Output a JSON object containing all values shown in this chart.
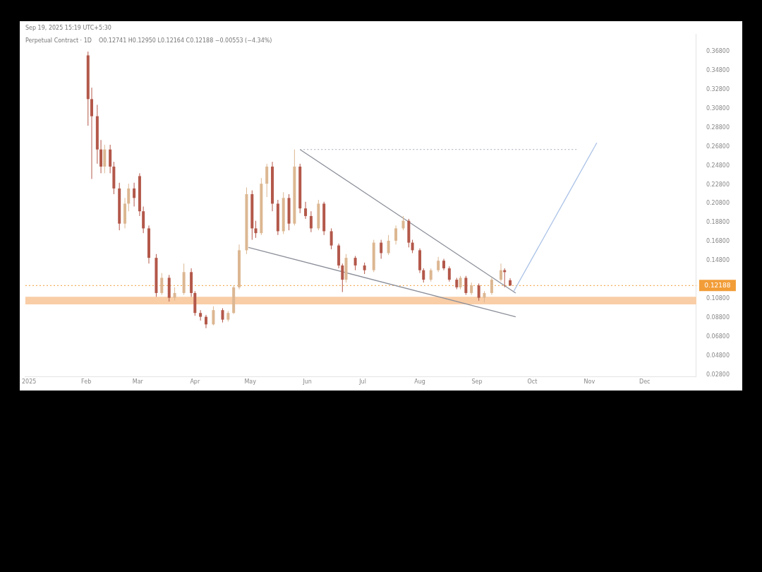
{
  "chart_data": {
    "type": "candlestick",
    "title": "Perpetual Contract · 1D",
    "subtitle": "O0.12741 H0.12950 L0.12164 C0.12188 −0.00553 (−4.34%)",
    "annotations": [
      "Sep 19, 2025 15:19 UTC+5:30"
    ],
    "xlim": [
      "2024-12-30",
      "2025-12-29"
    ],
    "xticks": [
      {
        "value": "2025-01-01",
        "label": "2025"
      },
      {
        "value": "2025-02-01",
        "label": "Feb"
      },
      {
        "value": "2025-03-01",
        "label": "Mar"
      },
      {
        "value": "2025-04-01",
        "label": "Apr"
      },
      {
        "value": "2025-05-01",
        "label": "May"
      },
      {
        "value": "2025-06-01",
        "label": "Jun"
      },
      {
        "value": "2025-07-01",
        "label": "Jul"
      },
      {
        "value": "2025-08-01",
        "label": "Aug"
      },
      {
        "value": "2025-09-01",
        "label": "Sep"
      },
      {
        "value": "2025-10-01",
        "label": "Oct"
      },
      {
        "value": "2025-11-01",
        "label": "Nov"
      },
      {
        "value": "2025-12-01",
        "label": "Dec"
      }
    ],
    "ylim": [
      0.026,
      0.386
    ],
    "yticks": [
      {
        "value": 0.028,
        "label": "0.02800"
      },
      {
        "value": 0.048,
        "label": "0.04800"
      },
      {
        "value": 0.068,
        "label": "0.06800"
      },
      {
        "value": 0.088,
        "label": "0.08800"
      },
      {
        "value": 0.108,
        "label": "0.10800"
      },
      {
        "value": 0.148,
        "label": "0.14800"
      },
      {
        "value": 0.168,
        "label": "0.16800"
      },
      {
        "value": 0.188,
        "label": "0.18800"
      },
      {
        "value": 0.208,
        "label": "0.20800"
      },
      {
        "value": 0.228,
        "label": "0.22800"
      },
      {
        "value": 0.248,
        "label": "0.24800"
      },
      {
        "value": 0.268,
        "label": "0.26800"
      },
      {
        "value": 0.288,
        "label": "0.28800"
      },
      {
        "value": 0.308,
        "label": "0.30800"
      },
      {
        "value": 0.328,
        "label": "0.32800"
      },
      {
        "value": 0.348,
        "label": "0.34800"
      },
      {
        "value": 0.368,
        "label": "0.36800"
      }
    ],
    "grid": false,
    "legend": false,
    "ref_lines": [
      {
        "axis": "y",
        "value": 0.12188,
        "label": "0.12188",
        "color": "#f29d38",
        "line_style": "dotted"
      }
    ],
    "bands": [
      {
        "axis": "y",
        "from": 0.102,
        "to": 0.11,
        "color": "#f9cda6"
      }
    ],
    "series": [
      {
        "x": [
          "2025-02-02",
          "2025-02-04",
          "2025-02-07",
          "2025-02-09",
          "2025-02-11",
          "2025-02-14",
          "2025-02-16",
          "2025-02-19",
          "2025-02-22",
          "2025-02-24",
          "2025-02-27",
          "2025-03-02",
          "2025-03-04",
          "2025-03-07",
          "2025-03-11",
          "2025-03-14",
          "2025-03-18",
          "2025-03-21",
          "2025-03-26",
          "2025-03-30",
          "2025-04-01",
          "2025-04-04",
          "2025-04-07",
          "2025-04-11",
          "2025-04-16",
          "2025-04-19",
          "2025-04-22",
          "2025-04-25",
          "2025-04-29",
          "2025-05-02",
          "2025-05-04",
          "2025-05-07",
          "2025-05-10",
          "2025-05-13",
          "2025-05-16",
          "2025-05-19",
          "2025-05-22",
          "2025-05-25",
          "2025-05-28",
          "2025-05-31",
          "2025-06-03",
          "2025-06-07",
          "2025-06-10",
          "2025-06-14",
          "2025-06-18",
          "2025-06-20",
          "2025-06-22",
          "2025-06-27",
          "2025-07-02",
          "2025-07-07",
          "2025-07-11",
          "2025-07-15",
          "2025-07-19",
          "2025-07-23",
          "2025-07-26",
          "2025-07-28",
          "2025-08-01",
          "2025-08-03",
          "2025-08-07",
          "2025-08-11",
          "2025-08-14",
          "2025-08-17",
          "2025-08-21",
          "2025-08-23",
          "2025-08-26",
          "2025-08-29",
          "2025-09-02",
          "2025-09-05",
          "2025-09-09",
          "2025-09-14",
          "2025-09-16",
          "2025-09-19"
        ],
        "ohlc": [
          [
            0.364,
            0.368,
            0.29,
            0.318
          ],
          [
            0.318,
            0.33,
            0.234,
            0.3
          ],
          [
            0.3,
            0.312,
            0.25,
            0.265
          ],
          [
            0.265,
            0.275,
            0.24,
            0.247
          ],
          [
            0.247,
            0.27,
            0.24,
            0.265
          ],
          [
            0.265,
            0.27,
            0.24,
            0.247
          ],
          [
            0.247,
            0.252,
            0.218,
            0.224
          ],
          [
            0.224,
            0.23,
            0.18,
            0.187
          ],
          [
            0.187,
            0.214,
            0.182,
            0.208
          ],
          [
            0.208,
            0.229,
            0.2,
            0.224
          ],
          [
            0.224,
            0.23,
            0.205,
            0.214
          ],
          [
            0.237,
            0.24,
            0.195,
            0.2
          ],
          [
            0.2,
            0.205,
            0.177,
            0.182
          ],
          [
            0.182,
            0.185,
            0.145,
            0.151
          ],
          [
            0.151,
            0.155,
            0.11,
            0.114
          ],
          [
            0.114,
            0.135,
            0.112,
            0.13
          ],
          [
            0.13,
            0.133,
            0.105,
            0.109
          ],
          [
            0.109,
            0.12,
            0.106,
            0.114
          ],
          [
            0.114,
            0.145,
            0.112,
            0.136
          ],
          [
            0.136,
            0.14,
            0.11,
            0.114
          ],
          [
            0.114,
            0.116,
            0.09,
            0.093
          ],
          [
            0.093,
            0.096,
            0.085,
            0.089
          ],
          [
            0.089,
            0.091,
            0.077,
            0.081
          ],
          [
            0.081,
            0.1,
            0.08,
            0.096
          ],
          [
            0.096,
            0.098,
            0.083,
            0.086
          ],
          [
            0.086,
            0.095,
            0.084,
            0.093
          ],
          [
            0.093,
            0.122,
            0.092,
            0.12
          ],
          [
            0.12,
            0.165,
            0.118,
            0.159
          ],
          [
            0.159,
            0.225,
            0.155,
            0.218
          ],
          [
            0.218,
            0.222,
            0.17,
            0.182
          ],
          [
            0.182,
            0.19,
            0.172,
            0.177
          ],
          [
            0.177,
            0.235,
            0.175,
            0.229
          ],
          [
            0.229,
            0.25,
            0.215,
            0.247
          ],
          [
            0.247,
            0.252,
            0.2,
            0.208
          ],
          [
            0.208,
            0.212,
            0.175,
            0.179
          ],
          [
            0.179,
            0.22,
            0.176,
            0.214
          ],
          [
            0.214,
            0.218,
            0.18,
            0.187
          ],
          [
            0.187,
            0.265,
            0.185,
            0.247
          ],
          [
            0.247,
            0.25,
            0.198,
            0.203
          ],
          [
            0.203,
            0.21,
            0.192,
            0.195
          ],
          [
            0.195,
            0.2,
            0.178,
            0.182
          ],
          [
            0.182,
            0.212,
            0.18,
            0.208
          ],
          [
            0.208,
            0.21,
            0.175,
            0.179
          ],
          [
            0.179,
            0.182,
            0.16,
            0.164
          ],
          [
            0.164,
            0.166,
            0.14,
            0.143
          ],
          [
            0.143,
            0.145,
            0.115,
            0.128
          ],
          [
            0.128,
            0.155,
            0.125,
            0.151
          ],
          [
            0.151,
            0.153,
            0.138,
            0.143
          ],
          [
            0.143,
            0.146,
            0.134,
            0.138
          ],
          [
            0.138,
            0.17,
            0.136,
            0.167
          ],
          [
            0.167,
            0.17,
            0.15,
            0.156
          ],
          [
            0.156,
            0.175,
            0.154,
            0.169
          ],
          [
            0.169,
            0.185,
            0.165,
            0.182
          ],
          [
            0.182,
            0.195,
            0.18,
            0.19
          ],
          [
            0.19,
            0.192,
            0.162,
            0.167
          ],
          [
            0.167,
            0.17,
            0.156,
            0.159
          ],
          [
            0.159,
            0.161,
            0.135,
            0.138
          ],
          [
            0.138,
            0.14,
            0.125,
            0.128
          ],
          [
            0.128,
            0.14,
            0.126,
            0.138
          ],
          [
            0.138,
            0.152,
            0.136,
            0.148
          ],
          [
            0.148,
            0.15,
            0.138,
            0.14
          ],
          [
            0.14,
            0.142,
            0.126,
            0.128
          ],
          [
            0.128,
            0.13,
            0.118,
            0.12
          ],
          [
            0.12,
            0.132,
            0.118,
            0.13
          ],
          [
            0.13,
            0.132,
            0.112,
            0.114
          ],
          [
            0.114,
            0.125,
            0.112,
            0.122
          ],
          [
            0.122,
            0.124,
            0.106,
            0.109
          ],
          [
            0.109,
            0.116,
            0.104,
            0.114
          ],
          [
            0.114,
            0.13,
            0.112,
            0.128
          ],
          [
            0.128,
            0.145,
            0.126,
            0.138
          ],
          [
            0.138,
            0.14,
            0.12,
            0.136
          ],
          [
            0.12741,
            0.1295,
            0.12164,
            0.12188
          ]
        ],
        "colors": [
          "#b3584a",
          "#b3584a",
          "#b3584a",
          "#b3584a",
          "#dcb792",
          "#b3584a",
          "#b3584a",
          "#b3584a",
          "#dcb792",
          "#dcb792",
          "#b3584a",
          "#b3584a",
          "#b3584a",
          "#b3584a",
          "#b3584a",
          "#dcb792",
          "#b3584a",
          "#dcb792",
          "#dcb792",
          "#b3584a",
          "#b3584a",
          "#b3584a",
          "#b3584a",
          "#dcb792",
          "#b3584a",
          "#dcb792",
          "#dcb792",
          "#dcb792",
          "#dcb792",
          "#b3584a",
          "#b3584a",
          "#dcb792",
          "#dcb792",
          "#b3584a",
          "#b3584a",
          "#dcb792",
          "#b3584a",
          "#dcb792",
          "#b3584a",
          "#b3584a",
          "#b3584a",
          "#dcb792",
          "#b3584a",
          "#b3584a",
          "#b3584a",
          "#b3584a",
          "#dcb792",
          "#b3584a",
          "#b3584a",
          "#dcb792",
          "#b3584a",
          "#dcb792",
          "#dcb792",
          "#dcb792",
          "#b3584a",
          "#b3584a",
          "#b3584a",
          "#b3584a",
          "#dcb792",
          "#dcb792",
          "#b3584a",
          "#b3584a",
          "#b3584a",
          "#dcb792",
          "#b3584a",
          "#dcb792",
          "#b3584a",
          "#dcb792",
          "#dcb792",
          "#dcb792",
          "#b3584a",
          "#b3584a"
        ]
      },
      {
        "type": "line",
        "x": [
          "2025-05-28",
          "2025-10-25"
        ],
        "values": [
          0.265,
          0.265
        ],
        "color": "#b8bcc6",
        "line_style": "dotted"
      },
      {
        "type": "line",
        "x": [
          "2025-05-28",
          "2025-09-22"
        ],
        "values": [
          0.265,
          0.114
        ],
        "color": "#8c909a",
        "line_style": "solid"
      },
      {
        "type": "line",
        "x": [
          "2025-04-30",
          "2025-09-22"
        ],
        "values": [
          0.162,
          0.089
        ],
        "color": "#8c909a",
        "line_style": "solid"
      },
      {
        "type": "line",
        "x": [
          "2025-09-21",
          "2025-11-05"
        ],
        "values": [
          0.116,
          0.272
        ],
        "color": "#a9c1e6",
        "line_style": "solid"
      }
    ]
  }
}
